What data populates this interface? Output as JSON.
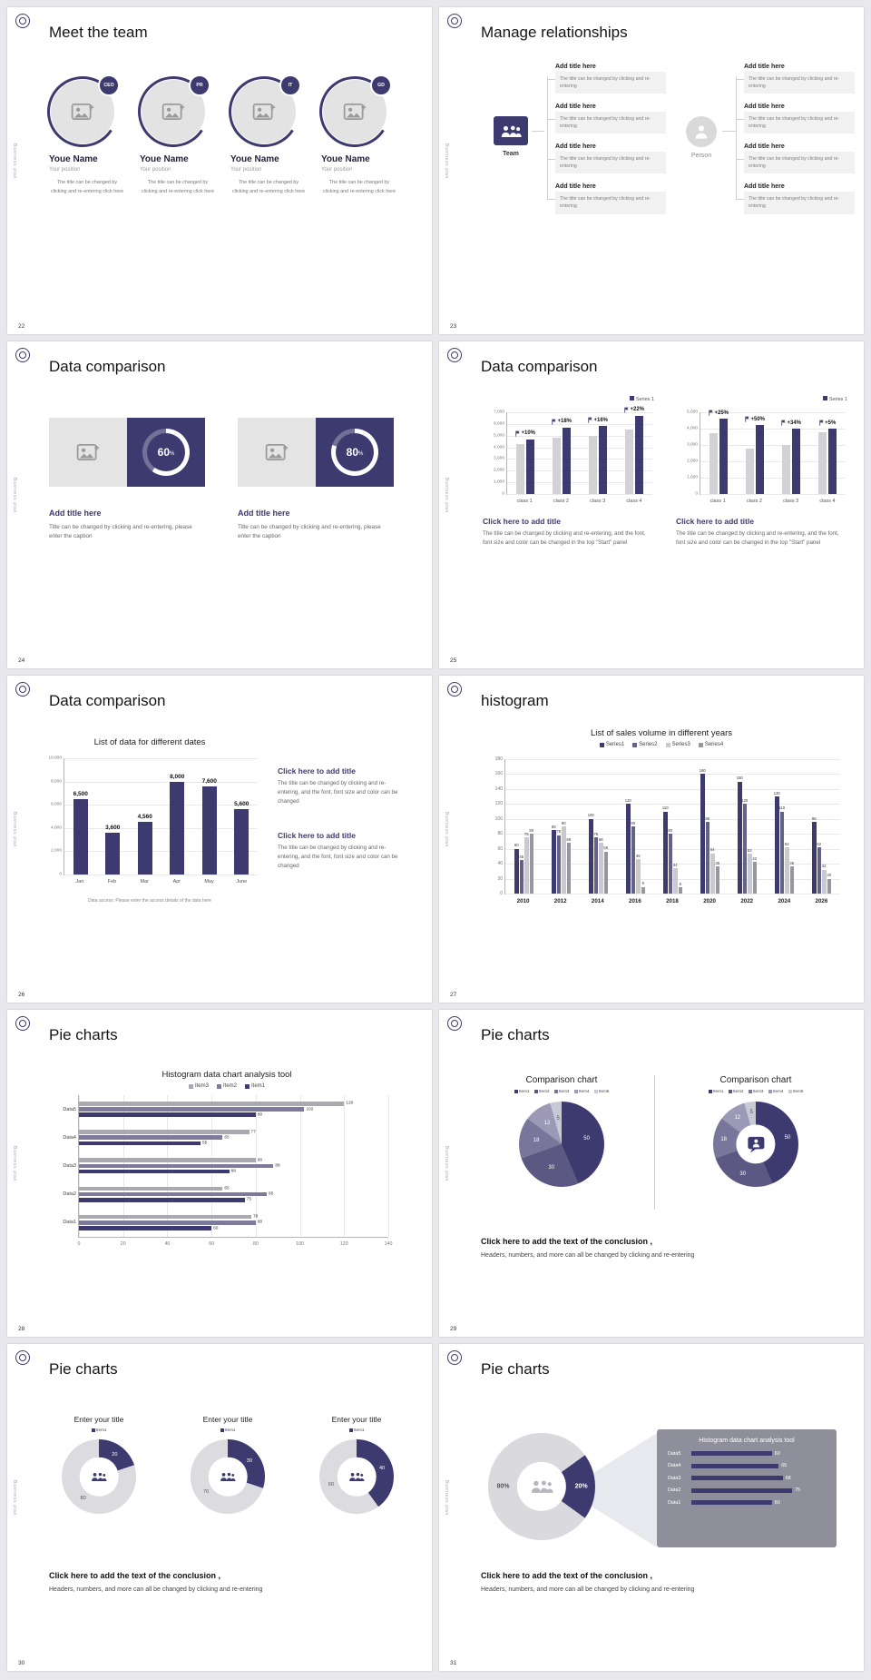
{
  "theme": {
    "navy": "#3d3a70",
    "gray_bar": "#d2d2d6",
    "page_bg": "#e9e9ed"
  },
  "shared": {
    "side_label": "Business plan",
    "conclusion_bold": "Click here to add the text of the conclusion ,",
    "conclusion_body": "Headers, numbers, and more can all be changed by clicking and re-entering"
  },
  "slides": [
    {
      "page": "22",
      "title": "Meet the team",
      "members": [
        {
          "badge": "CEO",
          "name": "Youe Name",
          "position": "Your position",
          "desc": "The title can be changed by clicking and re-entering click here"
        },
        {
          "badge": "PR",
          "name": "Youe Name",
          "position": "Your position",
          "desc": "The title can be changed by clicking and re-entering click here"
        },
        {
          "badge": "IT",
          "name": "Youe Name",
          "position": "Your position",
          "desc": "The title can be changed by clicking and re-entering click here"
        },
        {
          "badge": "GD",
          "name": "Youe Name",
          "position": "Your position",
          "desc": "The title can be changed by clicking and re-entering click here"
        }
      ]
    },
    {
      "page": "23",
      "title": "Manage relationships",
      "team_label": "Team",
      "person_label": "Person",
      "box_title": "Add title here",
      "box_body": "The title can be changed by clicking and re-entering"
    },
    {
      "page": "24",
      "title": "Data comparison",
      "unit": "%",
      "cards": [
        {
          "percent": "60",
          "title": "Add title here",
          "caption": "Title can be changed by clicking and re-entering, please enter the caption"
        },
        {
          "percent": "80",
          "title": "Add title here",
          "caption": "Title can be changed by clicking and re-entering, please enter the caption"
        }
      ]
    },
    {
      "page": "25",
      "title": "Data comparison",
      "caption_title": "Click here to add title",
      "caption_body": "The title can be changed by clicking and re-entering, and the font, font size and color can be changed in the top \"Start\" panel",
      "charts": [
        {
          "type": "bar",
          "legend": "Series 1",
          "ymax": 7000,
          "yticks": [
            "7,000",
            "6,000",
            "5,000",
            "4,000",
            "3,000",
            "2,000",
            "1,000",
            "0"
          ],
          "categories": [
            "class 1",
            "class 2",
            "class 3",
            "class 4"
          ],
          "pct": [
            "+10%",
            "+18%",
            "+16%",
            "+22%"
          ],
          "series": [
            {
              "name": "previous",
              "color": "#d2d2d6",
              "values": [
                4300,
                4800,
                5000,
                5500
              ]
            },
            {
              "name": "Series 1",
              "color": "#3d3a70",
              "values": [
                4700,
                5700,
                5800,
                6700
              ]
            }
          ]
        },
        {
          "type": "bar",
          "legend": "Series 1",
          "ymax": 5000,
          "yticks": [
            "5,000",
            "4,000",
            "3,000",
            "2,000",
            "1,000",
            "0"
          ],
          "categories": [
            "class 1",
            "class 2",
            "class 3",
            "class 4"
          ],
          "pct": [
            "+25%",
            "+50%",
            "+34%",
            "+5%"
          ],
          "series": [
            {
              "name": "previous",
              "color": "#d2d2d6",
              "values": [
                3700,
                2800,
                3000,
                3800
              ]
            },
            {
              "name": "Series 1",
              "color": "#3d3a70",
              "values": [
                4600,
                4200,
                4000,
                4000
              ]
            }
          ]
        }
      ]
    },
    {
      "page": "26",
      "title": "Data comparison",
      "chart": {
        "type": "bar",
        "title": "List of data for different dates",
        "ymax": 10000,
        "yticks": [
          "10,000",
          "8,000",
          "6,000",
          "4,000",
          "2,000",
          "0"
        ],
        "categories": [
          "Jan",
          "Feb",
          "Mar",
          "Apr",
          "May",
          "June"
        ],
        "values": [
          6500,
          3600,
          4560,
          8000,
          7600,
          5600
        ],
        "labels": [
          "6,500",
          "3,600",
          "4,560",
          "8,000",
          "7,600",
          "5,600"
        ],
        "color": "#3d3a70",
        "footnote": "Data access: Please enter the access details of the data here"
      },
      "blocks": [
        {
          "title": "Click here to add title",
          "body": "The title can be changed by clicking and re-entering, and the font, font size and color can be changed"
        },
        {
          "title": "Click here to add title",
          "body": "The title can be changed by clicking and re-entering, and the font, font size and color can be changed"
        }
      ]
    },
    {
      "page": "27",
      "title": "histogram",
      "chart": {
        "type": "bar",
        "title": "List of sales volume in different years",
        "legend": [
          "Series1",
          "Series2",
          "Series3",
          "Series4"
        ],
        "colors": [
          "#3d3a70",
          "#64618a",
          "#c9c9cf",
          "#97979f"
        ],
        "ymax": 180,
        "yticks": [
          "180",
          "160",
          "140",
          "120",
          "100",
          "80",
          "60",
          "40",
          "20",
          "0"
        ],
        "categories": [
          "2010",
          "2012",
          "2014",
          "2016",
          "2018",
          "2020",
          "2022",
          "2024",
          "2026"
        ],
        "series": [
          {
            "name": "Series1",
            "values": [
              60,
              85,
              100,
              120,
              110,
              160,
              150,
              130,
              96
            ]
          },
          {
            "name": "Series2",
            "values": [
              45,
              78,
              75,
              90,
              80,
              96,
              120,
              110,
              62
            ]
          },
          {
            "name": "Series3",
            "values": [
              75,
              90,
              68,
              46,
              34,
              54,
              53,
              62,
              32
            ]
          },
          {
            "name": "Series4",
            "values": [
              80,
              68,
              56,
              9,
              8,
              36,
              42,
              36,
              20
            ]
          }
        ]
      }
    },
    {
      "page": "28",
      "title": "Pie charts",
      "chart": {
        "type": "bar-horizontal",
        "title": "Histogram data chart analysis tool",
        "legend": [
          "Item3",
          "Item2",
          "Item1"
        ],
        "colors": [
          "#a9a9b1",
          "#7d7a9c",
          "#3d3a70"
        ],
        "xmax": 140,
        "xticks": [
          "0",
          "20",
          "40",
          "60",
          "80",
          "100",
          "120",
          "140"
        ],
        "groups": [
          {
            "label": "Data5",
            "values": [
              120,
              102,
              80
            ]
          },
          {
            "label": "Data4",
            "values": [
              77,
              65,
              55
            ]
          },
          {
            "label": "Data3",
            "values": [
              80,
              88,
              68
            ]
          },
          {
            "label": "Data2",
            "values": [
              65,
              85,
              75
            ]
          },
          {
            "label": "Data1",
            "values": [
              78,
              80,
              60
            ]
          }
        ]
      }
    },
    {
      "page": "29",
      "title": "Pie charts",
      "section_title": "Comparison chart",
      "legend": [
        "Item1",
        "Item2",
        "Item3",
        "Item4",
        "Item5"
      ],
      "colors": [
        "#3d3a70",
        "#5b5883",
        "#79769c",
        "#9b99b6",
        "#c9c8d6"
      ],
      "values": [
        50,
        30,
        18,
        12,
        5
      ]
    },
    {
      "page": "30",
      "title": "Pie charts",
      "charts": [
        {
          "title": "Enter your title",
          "legend": [
            "Item1"
          ],
          "colors": [
            "#3d3a70"
          ],
          "value": 20,
          "rest": 80
        },
        {
          "title": "Enter your title",
          "legend": [
            "Item1"
          ],
          "colors": [
            "#3d3a70"
          ],
          "value": 30,
          "rest": 70
        },
        {
          "title": "Enter your title",
          "legend": [
            "Item1"
          ],
          "colors": [
            "#3d3a70"
          ],
          "value": 40,
          "rest": 60
        }
      ]
    },
    {
      "page": "31",
      "title": "Pie charts",
      "donut": {
        "main_pct": "80%",
        "slice_pct": "20%"
      },
      "panel": {
        "title": "Histogram data chart analysis tool",
        "xmax": 100,
        "rows": [
          {
            "label": "Data5",
            "value": 60
          },
          {
            "label": "Data4",
            "value": 65
          },
          {
            "label": "Data3",
            "value": 68
          },
          {
            "label": "Data2",
            "value": 75
          },
          {
            "label": "Data1",
            "value": 60
          }
        ]
      }
    }
  ]
}
